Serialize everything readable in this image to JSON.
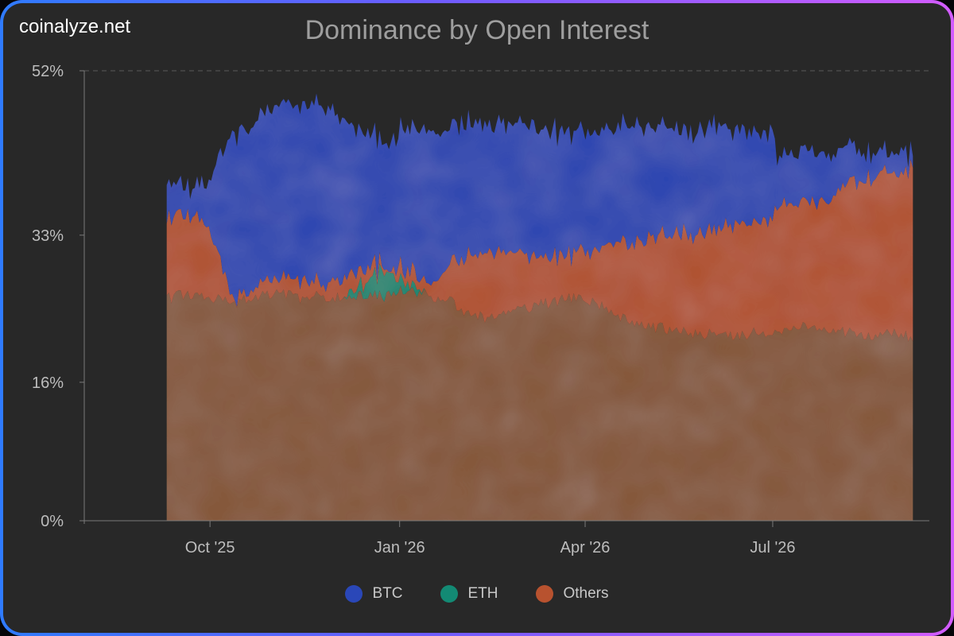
{
  "brand": "coinalyze.net",
  "colors": {
    "btc": "#2a47b8",
    "eth": "#138a74",
    "others": "#b8522f",
    "base": "#8a5a3a",
    "background": "#282828",
    "text": "#bdbdbd"
  },
  "chart_data": {
    "type": "area",
    "title": "Dominance by Open Interest",
    "stacked": true,
    "y_tick_labels": [
      "0%",
      "16%",
      "33%",
      "52%"
    ],
    "ylim": [
      0,
      52
    ],
    "grid": "top dashed line only",
    "x_tick_labels": [
      "Oct '25",
      "Jan '26",
      "Apr '26",
      "Jul '26"
    ],
    "legend_position": "bottom-center",
    "dates": [
      "2025-09-10",
      "2025-09-20",
      "2025-09-30",
      "2025-10-12",
      "2025-10-14",
      "2025-10-25",
      "2025-11-05",
      "2025-11-15",
      "2025-11-25",
      "2025-12-05",
      "2025-12-15",
      "2025-12-25",
      "2026-01-04",
      "2026-01-14",
      "2026-01-24",
      "2026-02-03",
      "2026-02-13",
      "2026-02-23",
      "2026-03-05",
      "2026-03-15",
      "2026-03-25",
      "2026-04-04",
      "2026-04-14",
      "2026-04-24",
      "2026-05-04",
      "2026-05-14",
      "2026-05-24",
      "2026-06-03",
      "2026-06-13",
      "2026-06-23",
      "2026-07-01",
      "2026-07-03",
      "2026-07-13",
      "2026-07-23",
      "2026-08-02",
      "2026-08-12",
      "2026-08-22",
      "2026-09-01",
      "2026-09-07"
    ],
    "series": [
      {
        "name": "Others",
        "values": [
          25.6,
          26.3,
          25.8,
          25.2,
          25.2,
          26.0,
          26.4,
          25.6,
          26.0,
          25.6,
          26.3,
          25.8,
          26.8,
          26.2,
          25.5,
          24.0,
          23.4,
          23.9,
          24.7,
          25.2,
          25.8,
          25.4,
          24.0,
          23.0,
          22.4,
          22.0,
          21.8,
          21.5,
          21.4,
          21.8,
          21.6,
          21.8,
          22.6,
          22.2,
          22.0,
          21.4,
          21.6,
          21.8,
          21.0
        ]
      },
      {
        "name": "ETH",
        "values": [
          0,
          0,
          0,
          0,
          0,
          0,
          0,
          0,
          0,
          0,
          1.4,
          3.0,
          0.8,
          0,
          0,
          0,
          0,
          0,
          0,
          0,
          0,
          0,
          0,
          0,
          0,
          0,
          0,
          0,
          0,
          0,
          0,
          0,
          0,
          0,
          0,
          0,
          0,
          0,
          0
        ]
      },
      {
        "name": "BTC",
        "values": [
          9.0,
          9.2,
          8.4,
          0.5,
          0.5,
          1.6,
          1.7,
          2.4,
          1.6,
          2.2,
          1.6,
          0.4,
          1.6,
          1.4,
          3.4,
          6.8,
          7.7,
          7.3,
          5.9,
          5.5,
          4.8,
          5.8,
          8.0,
          9.2,
          10.6,
          11.2,
          11.4,
          12.0,
          13.1,
          13.0,
          13.2,
          14.6,
          14.4,
          14.6,
          16.2,
          17.8,
          18.8,
          18.4,
          20.1
        ]
      },
      {
        "name": "BTC",
        "values": [
          3.8,
          3.2,
          4.8,
          19.0,
          19.0,
          19.2,
          20.1,
          20.2,
          20.6,
          18.4,
          15.4,
          14.2,
          16.2,
          17.6,
          16.3,
          15.4,
          14.5,
          14.6,
          15.1,
          14.5,
          14.0,
          13.6,
          13.4,
          13.8,
          12.8,
          12.3,
          12.0,
          12.1,
          10.9,
          10.4,
          10.2,
          5.8,
          5.6,
          6.0,
          4.8,
          3.4,
          2.4,
          2.4,
          1.3
        ]
      }
    ],
    "legend": [
      "BTC",
      "ETH",
      "Others"
    ]
  }
}
